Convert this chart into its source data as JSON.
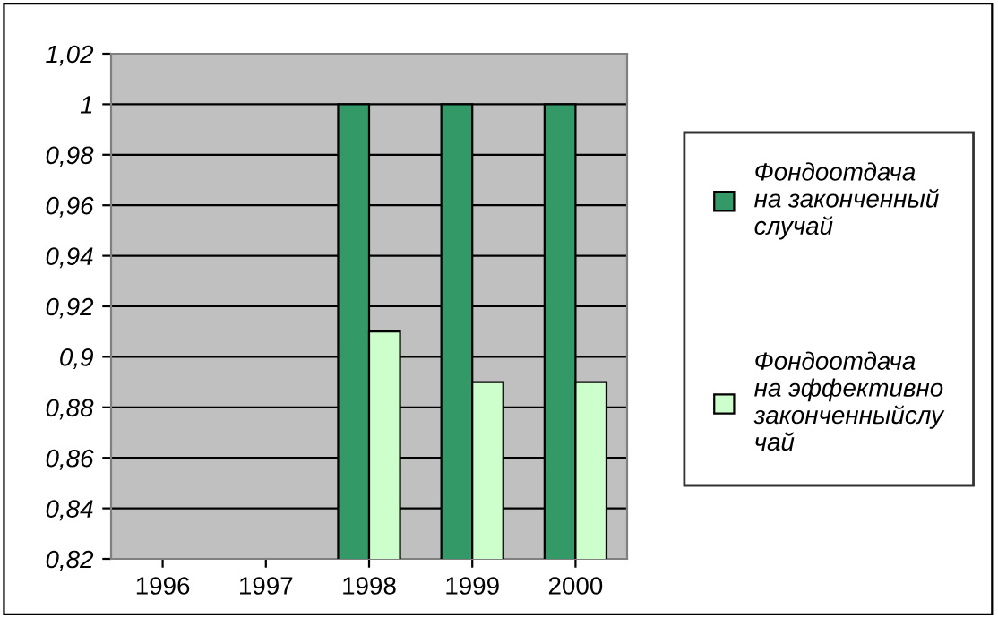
{
  "chart_data": {
    "type": "bar",
    "categories": [
      "1996",
      "1997",
      "1998",
      "1999",
      "2000"
    ],
    "series": [
      {
        "name": "Фондоотдача\nна законченный\nслучай",
        "color": "#339966",
        "values": [
          null,
          null,
          1,
          1,
          1
        ]
      },
      {
        "name": "Фондоотдача\nна эффективно\nзаконченныйслу\nчай",
        "color": "#ccffcc",
        "values": [
          null,
          null,
          0.91,
          0.89,
          0.89
        ]
      }
    ],
    "ylim": [
      0.82,
      1.02
    ],
    "yticks": [
      {
        "value": 0.82,
        "label": "0,82"
      },
      {
        "value": 0.84,
        "label": "0,84"
      },
      {
        "value": 0.86,
        "label": "0,86"
      },
      {
        "value": 0.88,
        "label": "0,88"
      },
      {
        "value": 0.9,
        "label": "0,9"
      },
      {
        "value": 0.92,
        "label": "0,92"
      },
      {
        "value": 0.94,
        "label": "0,94"
      },
      {
        "value": 0.96,
        "label": "0,96"
      },
      {
        "value": 0.98,
        "label": "0,98"
      },
      {
        "value": 1,
        "label": "1"
      },
      {
        "value": 1.02,
        "label": "1,02"
      }
    ],
    "grid": "y",
    "legend": "right"
  }
}
